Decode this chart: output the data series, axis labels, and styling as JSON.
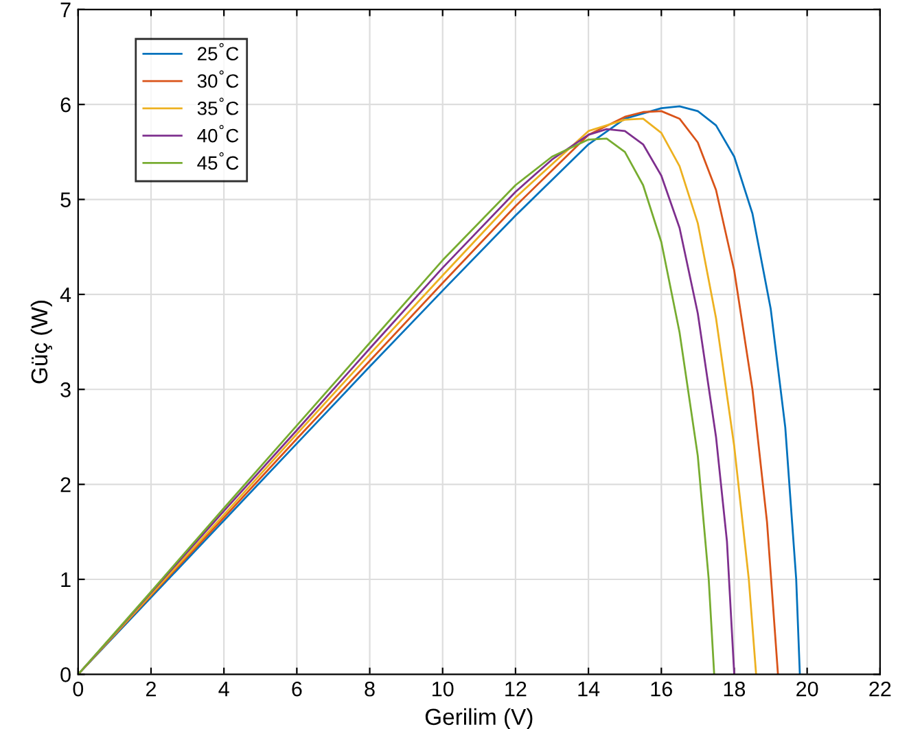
{
  "chart_data": {
    "type": "line",
    "xlabel": "Gerilim (V)",
    "ylabel": "Güç (W)",
    "xlim": [
      0,
      22
    ],
    "ylim": [
      0,
      7
    ],
    "xticks": [
      0,
      2,
      4,
      6,
      8,
      10,
      12,
      14,
      16,
      18,
      20,
      22
    ],
    "yticks": [
      0,
      1,
      2,
      3,
      4,
      5,
      6,
      7
    ],
    "grid": true,
    "legend": "top left",
    "marker": "none",
    "line_style": "solid",
    "series": [
      {
        "name": "25$^{°}$C",
        "color": "#0072bd",
        "x": [
          0,
          2,
          4,
          6,
          8,
          10,
          12,
          14,
          15,
          16,
          16.5,
          17,
          17.5,
          18,
          18.5,
          19,
          19.4,
          19.7,
          19.8
        ],
        "values": [
          0,
          0.81,
          1.62,
          2.43,
          3.24,
          4.04,
          4.83,
          5.58,
          5.85,
          5.96,
          5.98,
          5.93,
          5.78,
          5.45,
          4.85,
          3.85,
          2.6,
          1.0,
          0
        ]
      },
      {
        "name": "30$^{°}$C",
        "color": "#d95319",
        "x": [
          0,
          2,
          4,
          6,
          8,
          10,
          12,
          14,
          15,
          15.5,
          16,
          16.5,
          17,
          17.5,
          18,
          18.5,
          18.9,
          19.2
        ],
        "values": [
          0,
          0.83,
          1.65,
          2.48,
          3.3,
          4.12,
          4.93,
          5.68,
          5.87,
          5.92,
          5.93,
          5.85,
          5.6,
          5.1,
          4.25,
          3.0,
          1.6,
          0
        ]
      },
      {
        "name": "35$^{°}$C",
        "color": "#edb120",
        "x": [
          0,
          2,
          4,
          6,
          8,
          10,
          12,
          14,
          15,
          15.5,
          16,
          16.5,
          17,
          17.5,
          18,
          18.4,
          18.6
        ],
        "values": [
          0,
          0.84,
          1.68,
          2.53,
          3.37,
          4.2,
          5.02,
          5.72,
          5.84,
          5.85,
          5.7,
          5.35,
          4.75,
          3.75,
          2.4,
          1.0,
          0
        ]
      },
      {
        "name": "40$^{°}$C",
        "color": "#7e2f8e",
        "x": [
          0,
          2,
          4,
          6,
          8,
          10,
          12,
          13,
          14,
          14.5,
          15,
          15.5,
          16,
          16.5,
          17,
          17.5,
          17.8,
          18.0
        ],
        "values": [
          0,
          0.86,
          1.72,
          2.57,
          3.43,
          4.28,
          5.08,
          5.42,
          5.68,
          5.74,
          5.72,
          5.58,
          5.25,
          4.7,
          3.8,
          2.5,
          1.4,
          0
        ]
      },
      {
        "name": "45$^{°}$C",
        "color": "#77ac30",
        "x": [
          0,
          2,
          4,
          6,
          8,
          10,
          12,
          13,
          14,
          14.5,
          15,
          15.5,
          16,
          16.5,
          17,
          17.3,
          17.45
        ],
        "values": [
          0,
          0.87,
          1.75,
          2.62,
          3.49,
          4.36,
          5.15,
          5.45,
          5.63,
          5.64,
          5.5,
          5.15,
          4.55,
          3.6,
          2.3,
          1.0,
          0
        ]
      }
    ]
  }
}
